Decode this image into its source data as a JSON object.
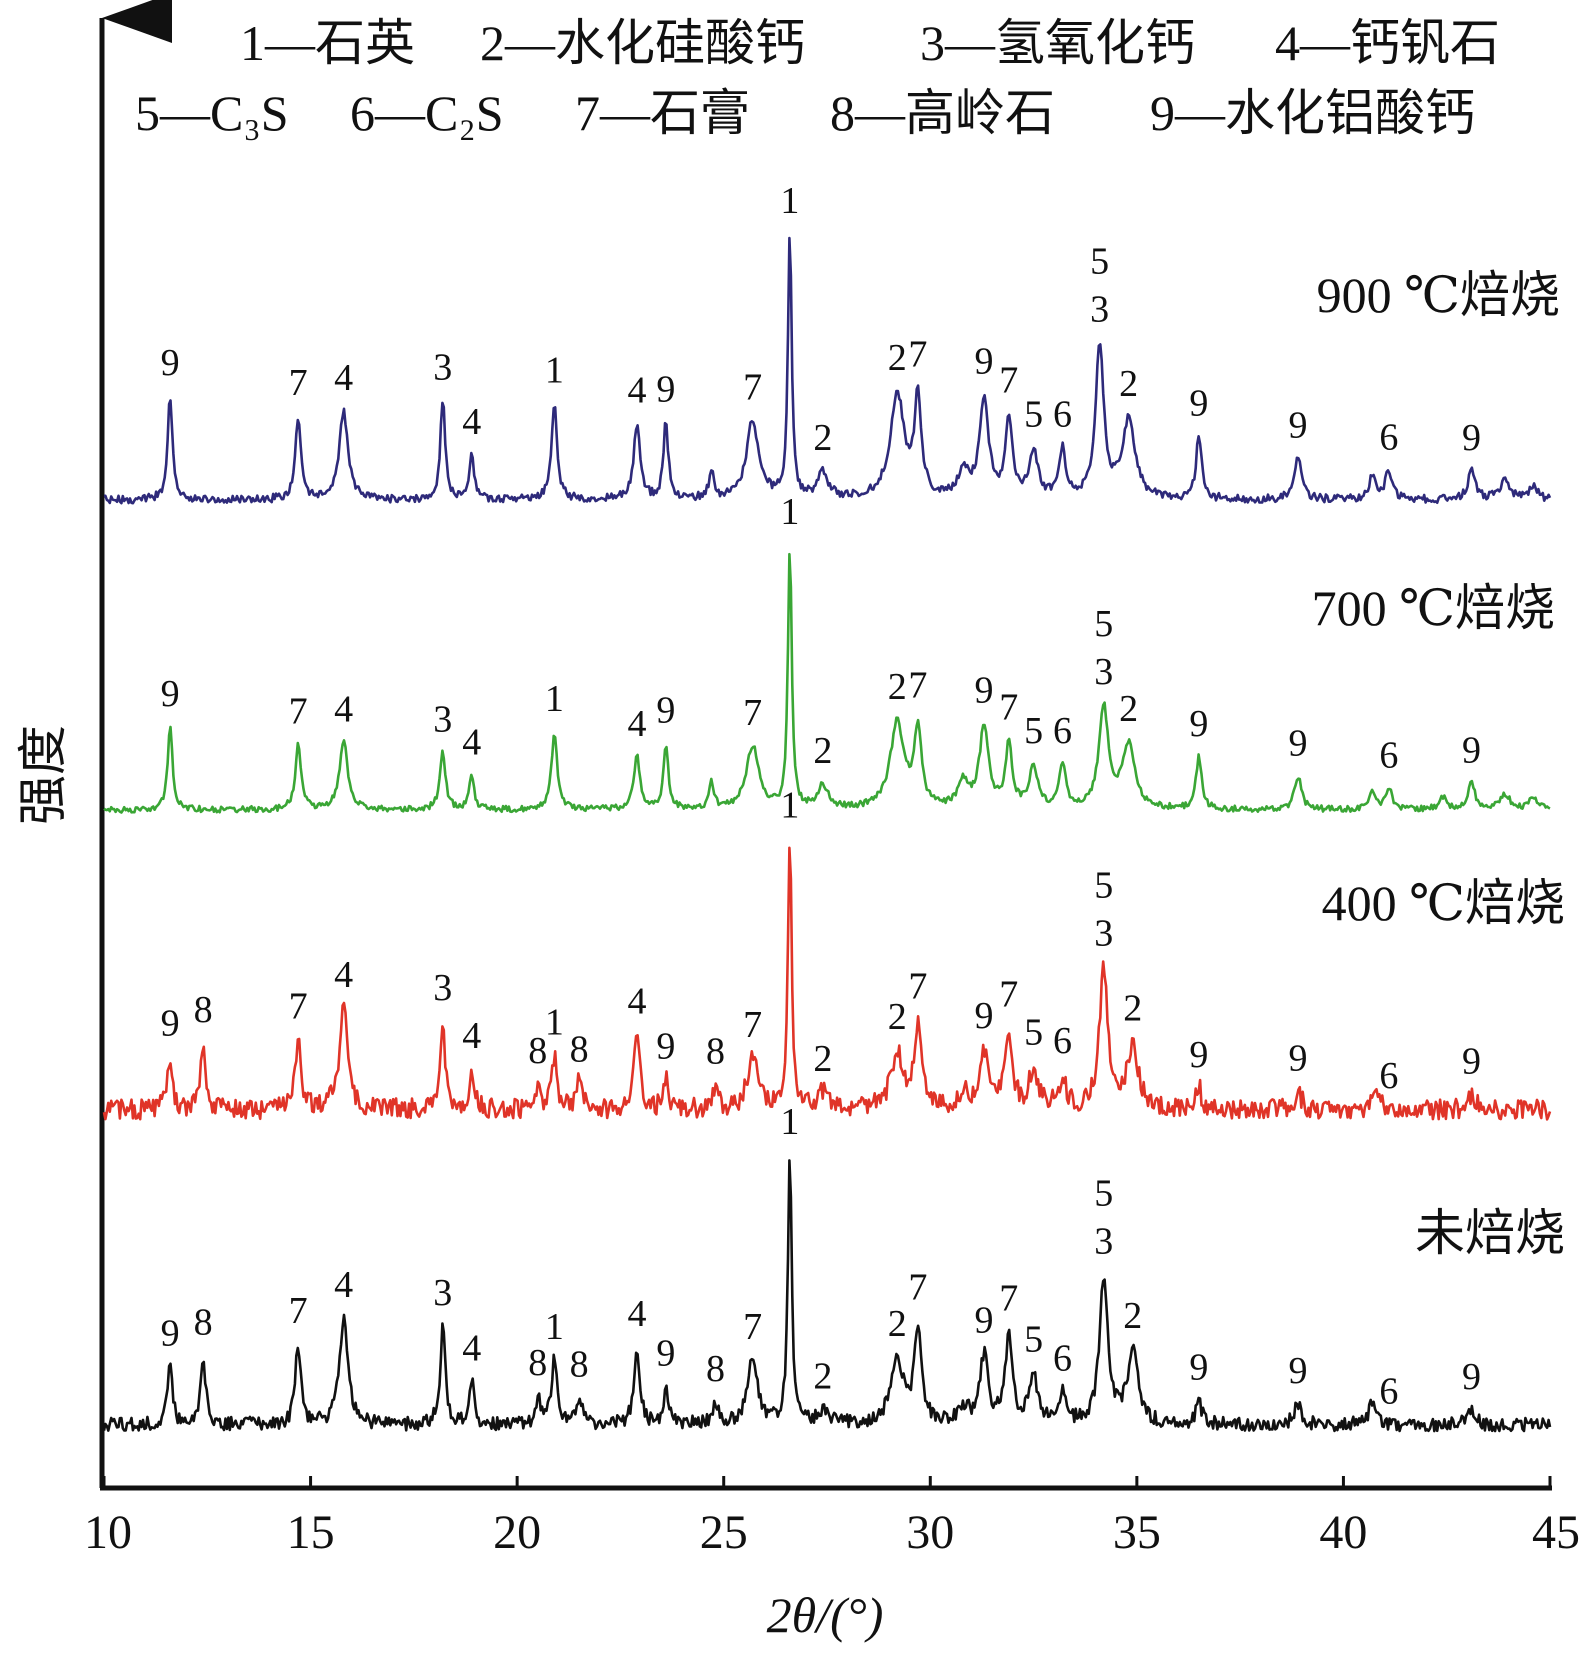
{
  "chart_data": {
    "type": "line",
    "title": "",
    "legend": [
      {
        "row": 1,
        "text": "1—石英"
      },
      {
        "row": 1,
        "text": "2—水化硅酸钙"
      },
      {
        "row": 1,
        "text": "3—氢氧化钙"
      },
      {
        "row": 1,
        "text": "4—钙钒石"
      },
      {
        "row": 2,
        "text": "5—C₃S"
      },
      {
        "row": 2,
        "text": "6—C₂S"
      },
      {
        "row": 2,
        "text": "7—石膏"
      },
      {
        "row": 2,
        "text": "8—高岭石"
      },
      {
        "row": 2,
        "text": "9—水化铝酸钙"
      }
    ],
    "legend_placement": "top",
    "xlabel": "2θ/(°)",
    "ylabel": "强度",
    "xlim": [
      10,
      45
    ],
    "xticks": [
      10,
      15,
      20,
      25,
      30,
      35,
      40,
      45
    ],
    "xtick_labels": [
      "10",
      "15",
      "20",
      "25",
      "30",
      "35",
      "40",
      "45"
    ],
    "grid": false,
    "series": [
      {
        "name": "900 ℃焙烧",
        "color": "#2e2a7a",
        "peaks": [
          {
            "x": 11.6,
            "h": 0.4,
            "w": 0.07
          },
          {
            "x": 14.7,
            "h": 0.32,
            "w": 0.08
          },
          {
            "x": 15.8,
            "h": 0.34,
            "w": 0.12
          },
          {
            "x": 18.2,
            "h": 0.38,
            "w": 0.07
          },
          {
            "x": 18.9,
            "h": 0.17,
            "w": 0.07
          },
          {
            "x": 20.9,
            "h": 0.37,
            "w": 0.08
          },
          {
            "x": 22.9,
            "h": 0.29,
            "w": 0.09
          },
          {
            "x": 23.6,
            "h": 0.29,
            "w": 0.07
          },
          {
            "x": 24.7,
            "h": 0.1,
            "w": 0.07
          },
          {
            "x": 25.7,
            "h": 0.3,
            "w": 0.18
          },
          {
            "x": 26.6,
            "h": 1.0,
            "w": 0.055
          },
          {
            "x": 27.4,
            "h": 0.1,
            "w": 0.15
          },
          {
            "x": 29.2,
            "h": 0.4,
            "w": 0.2
          },
          {
            "x": 29.7,
            "h": 0.37,
            "w": 0.1
          },
          {
            "x": 30.8,
            "h": 0.1,
            "w": 0.15
          },
          {
            "x": 31.3,
            "h": 0.38,
            "w": 0.13
          },
          {
            "x": 31.9,
            "h": 0.3,
            "w": 0.1
          },
          {
            "x": 32.5,
            "h": 0.18,
            "w": 0.12
          },
          {
            "x": 33.2,
            "h": 0.18,
            "w": 0.1
          },
          {
            "x": 34.1,
            "h": 0.58,
            "w": 0.12
          },
          {
            "x": 34.8,
            "h": 0.3,
            "w": 0.18
          },
          {
            "x": 36.5,
            "h": 0.24,
            "w": 0.08
          },
          {
            "x": 38.9,
            "h": 0.16,
            "w": 0.1
          },
          {
            "x": 40.7,
            "h": 0.09,
            "w": 0.1
          },
          {
            "x": 41.1,
            "h": 0.11,
            "w": 0.1
          },
          {
            "x": 43.1,
            "h": 0.11,
            "w": 0.1
          },
          {
            "x": 43.9,
            "h": 0.07,
            "w": 0.15
          },
          {
            "x": 44.6,
            "h": 0.05,
            "w": 0.12
          }
        ],
        "annotations": [
          {
            "x": 11.6,
            "text": "9"
          },
          {
            "x": 14.7,
            "text": "7"
          },
          {
            "x": 15.8,
            "text": "4"
          },
          {
            "x": 18.2,
            "text": "3"
          },
          {
            "x": 18.9,
            "text": "4"
          },
          {
            "x": 20.9,
            "text": "1"
          },
          {
            "x": 22.9,
            "text": "4"
          },
          {
            "x": 23.6,
            "text": "9"
          },
          {
            "x": 25.7,
            "text": "7"
          },
          {
            "x": 26.6,
            "text": "1"
          },
          {
            "x": 27.4,
            "text": "2"
          },
          {
            "x": 29.2,
            "text": "2"
          },
          {
            "x": 29.7,
            "text": "7"
          },
          {
            "x": 31.3,
            "text": "9"
          },
          {
            "x": 31.9,
            "text": "7"
          },
          {
            "x": 32.5,
            "text": "5"
          },
          {
            "x": 33.2,
            "text": "6"
          },
          {
            "x": 34.1,
            "text": "3"
          },
          {
            "x": 34.1,
            "text": "5"
          },
          {
            "x": 34.8,
            "text": "2"
          },
          {
            "x": 36.5,
            "text": "9"
          },
          {
            "x": 38.9,
            "text": "9"
          },
          {
            "x": 41.1,
            "text": "6"
          },
          {
            "x": 43.1,
            "text": "9"
          }
        ]
      },
      {
        "name": "700 ℃焙烧",
        "color": "#3aa635",
        "peaks": [
          {
            "x": 11.6,
            "h": 0.32,
            "w": 0.07
          },
          {
            "x": 14.7,
            "h": 0.25,
            "w": 0.08
          },
          {
            "x": 15.8,
            "h": 0.26,
            "w": 0.12
          },
          {
            "x": 18.2,
            "h": 0.22,
            "w": 0.08
          },
          {
            "x": 18.9,
            "h": 0.13,
            "w": 0.07
          },
          {
            "x": 20.9,
            "h": 0.3,
            "w": 0.08
          },
          {
            "x": 22.9,
            "h": 0.2,
            "w": 0.09
          },
          {
            "x": 23.6,
            "h": 0.25,
            "w": 0.07
          },
          {
            "x": 24.7,
            "h": 0.1,
            "w": 0.07
          },
          {
            "x": 25.7,
            "h": 0.24,
            "w": 0.18
          },
          {
            "x": 26.6,
            "h": 1.0,
            "w": 0.055
          },
          {
            "x": 27.4,
            "h": 0.09,
            "w": 0.15
          },
          {
            "x": 29.2,
            "h": 0.33,
            "w": 0.2
          },
          {
            "x": 29.7,
            "h": 0.3,
            "w": 0.1
          },
          {
            "x": 30.8,
            "h": 0.1,
            "w": 0.15
          },
          {
            "x": 31.3,
            "h": 0.31,
            "w": 0.13
          },
          {
            "x": 31.9,
            "h": 0.24,
            "w": 0.1
          },
          {
            "x": 32.5,
            "h": 0.16,
            "w": 0.12
          },
          {
            "x": 33.2,
            "h": 0.16,
            "w": 0.1
          },
          {
            "x": 34.2,
            "h": 0.38,
            "w": 0.14
          },
          {
            "x": 34.8,
            "h": 0.24,
            "w": 0.18
          },
          {
            "x": 36.5,
            "h": 0.2,
            "w": 0.08
          },
          {
            "x": 38.9,
            "h": 0.13,
            "w": 0.1
          },
          {
            "x": 40.7,
            "h": 0.06,
            "w": 0.1
          },
          {
            "x": 41.1,
            "h": 0.08,
            "w": 0.1
          },
          {
            "x": 42.4,
            "h": 0.05,
            "w": 0.1
          },
          {
            "x": 43.1,
            "h": 0.1,
            "w": 0.1
          },
          {
            "x": 43.9,
            "h": 0.06,
            "w": 0.15
          },
          {
            "x": 44.6,
            "h": 0.05,
            "w": 0.12
          }
        ],
        "annotations": [
          {
            "x": 11.6,
            "text": "9"
          },
          {
            "x": 14.7,
            "text": "7"
          },
          {
            "x": 15.8,
            "text": "4"
          },
          {
            "x": 18.2,
            "text": "3"
          },
          {
            "x": 18.9,
            "text": "4"
          },
          {
            "x": 20.9,
            "text": "1"
          },
          {
            "x": 22.9,
            "text": "4"
          },
          {
            "x": 23.6,
            "text": "9"
          },
          {
            "x": 25.7,
            "text": "7"
          },
          {
            "x": 26.6,
            "text": "1"
          },
          {
            "x": 27.4,
            "text": "2"
          },
          {
            "x": 29.2,
            "text": "2"
          },
          {
            "x": 29.7,
            "text": "7"
          },
          {
            "x": 31.3,
            "text": "9"
          },
          {
            "x": 31.9,
            "text": "7"
          },
          {
            "x": 32.5,
            "text": "5"
          },
          {
            "x": 33.2,
            "text": "6"
          },
          {
            "x": 34.2,
            "text": "3"
          },
          {
            "x": 34.2,
            "text": "5"
          },
          {
            "x": 34.8,
            "text": "2"
          },
          {
            "x": 36.5,
            "text": "9"
          },
          {
            "x": 38.9,
            "text": "9"
          },
          {
            "x": 41.1,
            "text": "6"
          },
          {
            "x": 43.1,
            "text": "9"
          }
        ]
      },
      {
        "name": "400 ℃焙烧",
        "color": "#e03428",
        "peaks": [
          {
            "x": 11.6,
            "h": 0.2,
            "w": 0.07
          },
          {
            "x": 12.4,
            "h": 0.25,
            "w": 0.07
          },
          {
            "x": 14.7,
            "h": 0.26,
            "w": 0.08
          },
          {
            "x": 15.8,
            "h": 0.38,
            "w": 0.12
          },
          {
            "x": 18.2,
            "h": 0.33,
            "w": 0.07
          },
          {
            "x": 18.9,
            "h": 0.15,
            "w": 0.07
          },
          {
            "x": 20.5,
            "h": 0.09,
            "w": 0.07
          },
          {
            "x": 20.9,
            "h": 0.2,
            "w": 0.08
          },
          {
            "x": 21.5,
            "h": 0.1,
            "w": 0.08
          },
          {
            "x": 22.9,
            "h": 0.28,
            "w": 0.08
          },
          {
            "x": 23.6,
            "h": 0.11,
            "w": 0.07
          },
          {
            "x": 24.8,
            "h": 0.09,
            "w": 0.08
          },
          {
            "x": 25.7,
            "h": 0.19,
            "w": 0.15
          },
          {
            "x": 26.6,
            "h": 1.0,
            "w": 0.055
          },
          {
            "x": 27.4,
            "h": 0.06,
            "w": 0.15
          },
          {
            "x": 29.2,
            "h": 0.21,
            "w": 0.18
          },
          {
            "x": 29.7,
            "h": 0.31,
            "w": 0.1
          },
          {
            "x": 30.8,
            "h": 0.06,
            "w": 0.15
          },
          {
            "x": 31.3,
            "h": 0.21,
            "w": 0.12
          },
          {
            "x": 31.9,
            "h": 0.29,
            "w": 0.1
          },
          {
            "x": 32.5,
            "h": 0.15,
            "w": 0.12
          },
          {
            "x": 33.2,
            "h": 0.12,
            "w": 0.1
          },
          {
            "x": 34.2,
            "h": 0.52,
            "w": 0.12
          },
          {
            "x": 34.9,
            "h": 0.24,
            "w": 0.15
          },
          {
            "x": 36.5,
            "h": 0.08,
            "w": 0.08
          },
          {
            "x": 38.9,
            "h": 0.07,
            "w": 0.1
          },
          {
            "x": 40.8,
            "h": 0.07,
            "w": 0.1
          },
          {
            "x": 43.1,
            "h": 0.06,
            "w": 0.1
          }
        ],
        "annotations": [
          {
            "x": 11.6,
            "text": "9"
          },
          {
            "x": 12.4,
            "text": "8"
          },
          {
            "x": 14.7,
            "text": "7"
          },
          {
            "x": 15.8,
            "text": "4"
          },
          {
            "x": 18.2,
            "text": "3"
          },
          {
            "x": 18.9,
            "text": "4"
          },
          {
            "x": 20.5,
            "text": "8"
          },
          {
            "x": 20.9,
            "text": "1"
          },
          {
            "x": 21.5,
            "text": "8"
          },
          {
            "x": 22.9,
            "text": "4"
          },
          {
            "x": 23.6,
            "text": "9"
          },
          {
            "x": 24.8,
            "text": "8"
          },
          {
            "x": 25.7,
            "text": "7"
          },
          {
            "x": 26.6,
            "text": "1"
          },
          {
            "x": 27.4,
            "text": "2"
          },
          {
            "x": 29.2,
            "text": "2"
          },
          {
            "x": 29.7,
            "text": "7"
          },
          {
            "x": 31.3,
            "text": "9"
          },
          {
            "x": 31.9,
            "text": "7"
          },
          {
            "x": 32.5,
            "text": "5"
          },
          {
            "x": 33.2,
            "text": "6"
          },
          {
            "x": 34.2,
            "text": "3"
          },
          {
            "x": 34.2,
            "text": "5"
          },
          {
            "x": 34.9,
            "text": "2"
          },
          {
            "x": 36.5,
            "text": "9"
          },
          {
            "x": 38.9,
            "text": "9"
          },
          {
            "x": 41.1,
            "text": "6"
          },
          {
            "x": 43.1,
            "text": "9"
          }
        ]
      },
      {
        "name": "未焙烧",
        "color": "#111111",
        "peaks": [
          {
            "x": 11.6,
            "h": 0.22,
            "w": 0.07
          },
          {
            "x": 12.4,
            "h": 0.26,
            "w": 0.07
          },
          {
            "x": 14.7,
            "h": 0.3,
            "w": 0.08
          },
          {
            "x": 15.8,
            "h": 0.4,
            "w": 0.12
          },
          {
            "x": 18.2,
            "h": 0.37,
            "w": 0.07
          },
          {
            "x": 18.9,
            "h": 0.16,
            "w": 0.07
          },
          {
            "x": 20.5,
            "h": 0.1,
            "w": 0.07
          },
          {
            "x": 20.9,
            "h": 0.24,
            "w": 0.08
          },
          {
            "x": 21.5,
            "h": 0.1,
            "w": 0.08
          },
          {
            "x": 22.9,
            "h": 0.29,
            "w": 0.08
          },
          {
            "x": 23.6,
            "h": 0.14,
            "w": 0.07
          },
          {
            "x": 24.8,
            "h": 0.08,
            "w": 0.08
          },
          {
            "x": 25.7,
            "h": 0.24,
            "w": 0.15
          },
          {
            "x": 26.6,
            "h": 1.0,
            "w": 0.055
          },
          {
            "x": 27.4,
            "h": 0.05,
            "w": 0.15
          },
          {
            "x": 29.2,
            "h": 0.24,
            "w": 0.18
          },
          {
            "x": 29.7,
            "h": 0.36,
            "w": 0.1
          },
          {
            "x": 30.8,
            "h": 0.06,
            "w": 0.15
          },
          {
            "x": 31.3,
            "h": 0.25,
            "w": 0.12
          },
          {
            "x": 31.9,
            "h": 0.33,
            "w": 0.1
          },
          {
            "x": 32.5,
            "h": 0.18,
            "w": 0.12
          },
          {
            "x": 33.2,
            "h": 0.11,
            "w": 0.1
          },
          {
            "x": 34.2,
            "h": 0.55,
            "w": 0.12
          },
          {
            "x": 34.9,
            "h": 0.27,
            "w": 0.15
          },
          {
            "x": 36.5,
            "h": 0.09,
            "w": 0.08
          },
          {
            "x": 38.9,
            "h": 0.08,
            "w": 0.1
          },
          {
            "x": 40.7,
            "h": 0.08,
            "w": 0.1
          },
          {
            "x": 43.1,
            "h": 0.06,
            "w": 0.1
          }
        ],
        "annotations": [
          {
            "x": 11.6,
            "text": "9"
          },
          {
            "x": 12.4,
            "text": "8"
          },
          {
            "x": 14.7,
            "text": "7"
          },
          {
            "x": 15.8,
            "text": "4"
          },
          {
            "x": 18.2,
            "text": "3"
          },
          {
            "x": 18.9,
            "text": "4"
          },
          {
            "x": 20.5,
            "text": "8"
          },
          {
            "x": 20.9,
            "text": "1"
          },
          {
            "x": 21.5,
            "text": "8"
          },
          {
            "x": 22.9,
            "text": "4"
          },
          {
            "x": 23.6,
            "text": "9"
          },
          {
            "x": 24.8,
            "text": "8"
          },
          {
            "x": 25.7,
            "text": "7"
          },
          {
            "x": 26.6,
            "text": "1"
          },
          {
            "x": 27.4,
            "text": "2"
          },
          {
            "x": 29.2,
            "text": "2"
          },
          {
            "x": 29.7,
            "text": "7"
          },
          {
            "x": 31.3,
            "text": "9"
          },
          {
            "x": 31.9,
            "text": "7"
          },
          {
            "x": 32.5,
            "text": "5"
          },
          {
            "x": 33.2,
            "text": "6"
          },
          {
            "x": 34.2,
            "text": "3"
          },
          {
            "x": 34.2,
            "text": "5"
          },
          {
            "x": 34.9,
            "text": "2"
          },
          {
            "x": 36.5,
            "text": "9"
          },
          {
            "x": 38.9,
            "text": "9"
          },
          {
            "x": 41.1,
            "text": "6"
          },
          {
            "x": 43.1,
            "text": "9"
          }
        ]
      }
    ]
  }
}
